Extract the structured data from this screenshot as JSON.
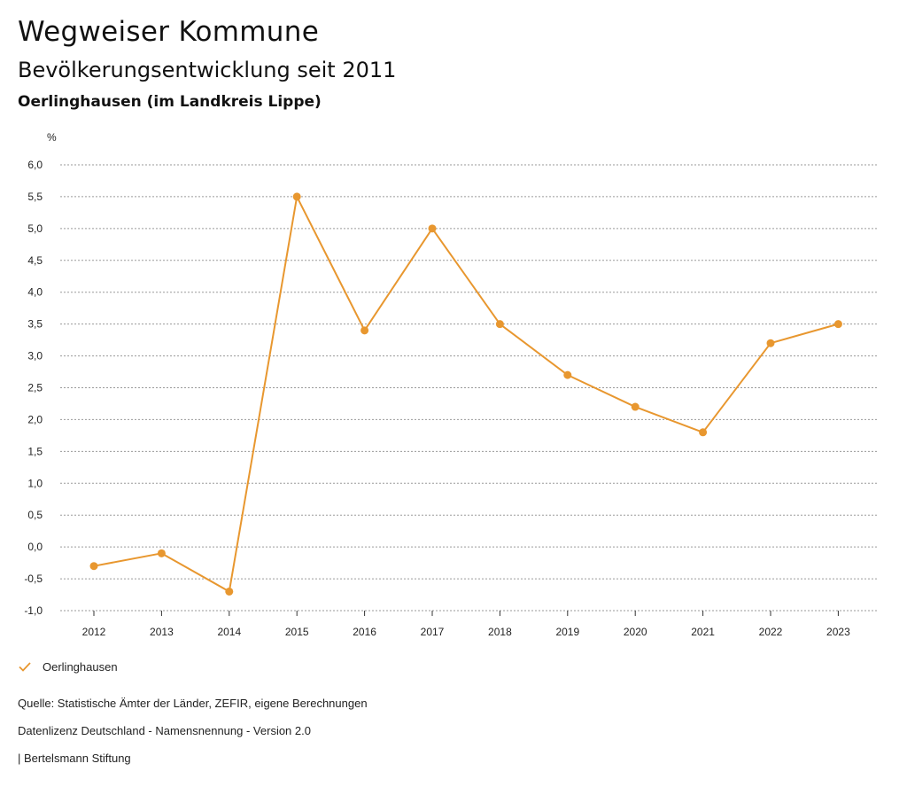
{
  "header": {
    "title": "Wegweiser Kommune",
    "subtitle": "Bevölkerungsentwicklung seit 2011",
    "region": "Oerlinghausen (im Landkreis Lippe)"
  },
  "chart_data": {
    "type": "line",
    "ylabel": "%",
    "ylim": [
      -1.0,
      6.0
    ],
    "ytick_step": 0.5,
    "yticks": [
      "6,0",
      "5,5",
      "5,0",
      "4,5",
      "4,0",
      "3,5",
      "3,0",
      "2,5",
      "2,0",
      "1,5",
      "1,0",
      "0,5",
      "0,0",
      "-0,5",
      "-1,0"
    ],
    "categories": [
      "2012",
      "2013",
      "2014",
      "2015",
      "2016",
      "2017",
      "2018",
      "2019",
      "2020",
      "2021",
      "2022",
      "2023"
    ],
    "series": [
      {
        "name": "Oerlinghausen",
        "color": "#e8972f",
        "values": [
          -0.3,
          -0.1,
          -0.7,
          5.5,
          3.4,
          5.0,
          3.5,
          2.7,
          2.2,
          1.8,
          3.2,
          3.5
        ]
      }
    ],
    "grid": true,
    "legend": "bottom-left"
  },
  "legend": {
    "label": "Oerlinghausen",
    "color": "#e8972f"
  },
  "footer": {
    "source": "Quelle: Statistische Ämter der Länder, ZEFIR, eigene Berechnungen",
    "license": "Datenlizenz Deutschland - Namensnennung - Version 2.0",
    "publisher": "| Bertelsmann Stiftung"
  }
}
